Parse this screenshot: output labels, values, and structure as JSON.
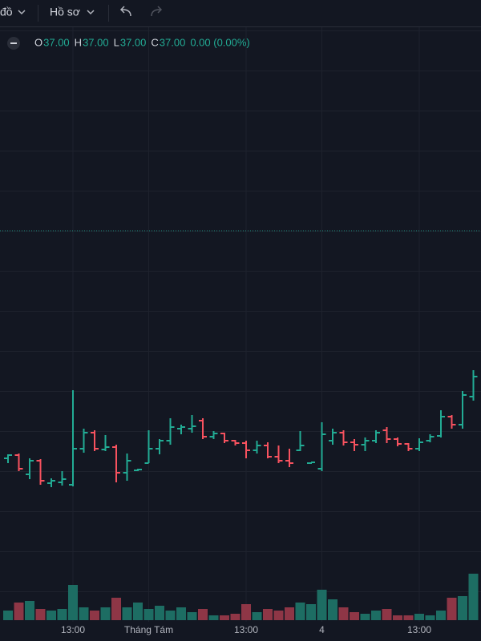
{
  "toolbar": {
    "chart_label": "đồ",
    "profile": "Hồ sơ"
  },
  "legend": {
    "items": [
      {
        "key": "O",
        "value": "37.00"
      },
      {
        "key": "H",
        "value": "37.00"
      },
      {
        "key": "L",
        "value": "37.00"
      },
      {
        "key": "C",
        "value": "37.00"
      }
    ],
    "change": "0.00 (0.00%)"
  },
  "chart_data": {
    "type": "ohlc",
    "categories": [
      null,
      null,
      null,
      null,
      null,
      null,
      "13:00",
      null,
      null,
      null,
      null,
      null,
      null,
      "Tháng Tám",
      null,
      null,
      null,
      null,
      null,
      null,
      null,
      null,
      "13:00",
      null,
      null,
      null,
      null,
      null,
      null,
      "4",
      null,
      null,
      null,
      null,
      null,
      null,
      null,
      null,
      "13:00",
      null,
      null,
      null,
      null,
      null
    ],
    "open": [
      34.16,
      34.2,
      33.96,
      34.13,
      33.85,
      33.86,
      33.83,
      34.28,
      34.48,
      34.27,
      34.3,
      33.98,
      34.01,
      34.1,
      34.28,
      34.38,
      34.53,
      34.53,
      34.63,
      34.43,
      34.47,
      34.38,
      34.35,
      34.26,
      34.32,
      34.18,
      34.13,
      34.26,
      34.1,
      34.03,
      34.38,
      34.48,
      34.36,
      34.33,
      34.38,
      34.51,
      34.4,
      34.34,
      34.28,
      34.38,
      34.44,
      34.68,
      34.58,
      34.93
    ],
    "high": [
      34.21,
      34.22,
      34.16,
      34.15,
      33.91,
      34.0,
      35.01,
      34.53,
      34.51,
      34.45,
      34.33,
      34.22,
      34.03,
      34.51,
      34.4,
      34.66,
      34.58,
      34.7,
      34.66,
      34.5,
      34.48,
      34.39,
      34.38,
      34.38,
      34.36,
      34.32,
      34.28,
      34.5,
      34.11,
      34.61,
      34.53,
      34.51,
      34.4,
      34.42,
      34.51,
      34.55,
      34.42,
      34.35,
      34.41,
      34.46,
      34.76,
      34.7,
      35.0,
      35.26
    ],
    "low": [
      34.1,
      34.0,
      33.9,
      33.83,
      33.8,
      33.82,
      33.81,
      34.23,
      34.25,
      34.25,
      33.86,
      33.88,
      34.0,
      34.1,
      34.21,
      34.33,
      34.46,
      34.48,
      34.4,
      34.4,
      34.35,
      34.32,
      34.16,
      34.22,
      34.16,
      34.1,
      34.05,
      34.25,
      34.09,
      34.0,
      34.33,
      34.32,
      34.25,
      34.25,
      34.35,
      34.35,
      34.31,
      34.25,
      34.25,
      34.36,
      34.42,
      34.53,
      34.53,
      34.88
    ],
    "close": [
      34.2,
      34.03,
      34.13,
      33.88,
      33.88,
      33.9,
      34.28,
      34.48,
      34.28,
      34.3,
      33.98,
      34.13,
      34.02,
      34.28,
      34.38,
      34.55,
      34.55,
      34.56,
      34.43,
      34.47,
      34.38,
      34.35,
      34.26,
      34.32,
      34.18,
      34.13,
      34.1,
      34.32,
      34.11,
      34.46,
      34.48,
      34.36,
      34.33,
      34.38,
      34.48,
      34.4,
      34.34,
      34.28,
      34.36,
      34.43,
      34.68,
      34.58,
      34.95,
      35.18
    ],
    "volume": [
      12,
      22,
      24,
      14,
      12,
      14,
      44,
      16,
      12,
      16,
      28,
      16,
      22,
      14,
      18,
      12,
      16,
      10,
      14,
      6,
      6,
      8,
      20,
      10,
      14,
      12,
      16,
      22,
      20,
      38,
      26,
      16,
      10,
      8,
      12,
      14,
      6,
      6,
      8,
      6,
      12,
      28,
      30,
      58
    ],
    "ylim": [
      32,
      39.5
    ],
    "volume_ylim": [
      0,
      60
    ],
    "price_line": 37,
    "up_color": "#22ab94",
    "down_color": "#f7525f",
    "volume_up_color": "#1d6d63",
    "volume_down_color": "#8e3646",
    "grid": true
  }
}
